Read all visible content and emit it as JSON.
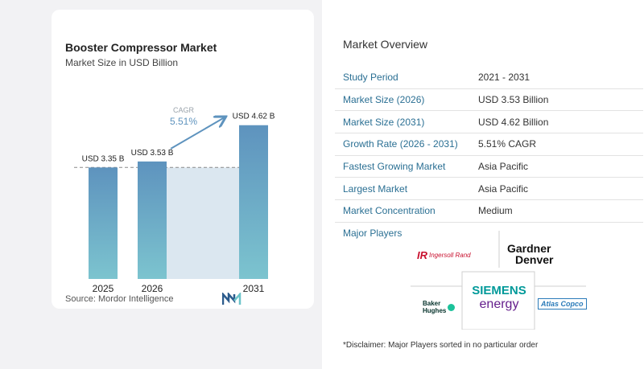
{
  "chart_data": {
    "type": "bar",
    "title": "Booster Compressor Market",
    "subtitle": "Market Size in USD Billion",
    "categories": [
      "2025",
      "2026",
      "2031"
    ],
    "values": [
      3.35,
      3.53,
      4.62
    ],
    "value_labels": [
      "USD 3.35 B",
      "USD 3.53 B",
      "USD 4.62 B"
    ],
    "cagr_label": "CAGR",
    "cagr_value": "5.51%",
    "ylim": [
      0,
      5
    ],
    "source": "Source:  Mordor Intelligence",
    "colors": {
      "bar_top": "#5e93be",
      "bar_bottom": "#7cc4cf",
      "band": "#dbe7f0",
      "arrow": "#5e93be",
      "cagr_text": "#5e93be"
    }
  },
  "overview": {
    "title": "Market Overview",
    "rows": [
      {
        "label": "Study Period",
        "value": "2021 - 2031"
      },
      {
        "label": "Market Size (2026)",
        "value": "USD 3.53 Billion"
      },
      {
        "label": "Market Size (2031)",
        "value": "USD 4.62 Billion"
      },
      {
        "label": "Growth Rate (2026 - 2031)",
        "value": "5.51% CAGR"
      },
      {
        "label": "Fastest Growing Market",
        "value": "Asia Pacific"
      },
      {
        "label": "Largest Market",
        "value": "Asia Pacific"
      },
      {
        "label": "Market Concentration",
        "value": "Medium"
      }
    ],
    "players_title": "Major Players",
    "players": [
      {
        "name": "Ingersoll Rand",
        "mark": "IR"
      },
      {
        "name": "Gardner Denver",
        "lines": [
          "Gardner",
          "Denver"
        ]
      },
      {
        "name": "Siemens Energy",
        "lines": [
          "SIEMENS",
          "energy"
        ]
      },
      {
        "name": "Baker Hughes",
        "lines": [
          "Baker",
          "Hughes"
        ]
      },
      {
        "name": "Atlas Copco"
      }
    ],
    "disclaimer": "*Disclaimer: Major Players sorted in no particular order"
  }
}
